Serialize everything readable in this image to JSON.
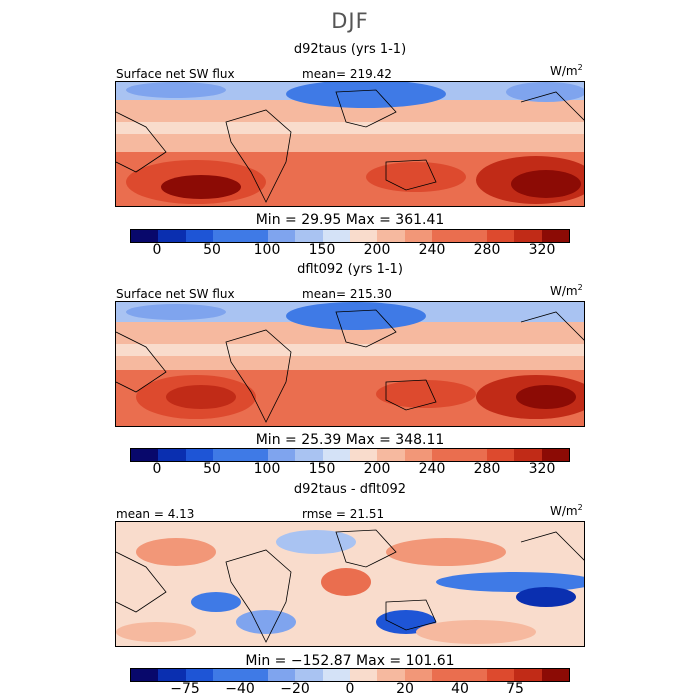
{
  "title": "DJF",
  "panels": [
    {
      "subtitle": "d92taus (yrs 1-1)",
      "left_label": "Surface net SW flux",
      "mid_label": "mean= 219.42",
      "units": "W/m",
      "units_exp": "2",
      "stats": "Min =  29.95 Max = 361.41"
    },
    {
      "subtitle": "dflt092 (yrs 1-1)",
      "left_label": "Surface net SW flux",
      "mid_label": "mean= 215.30",
      "units": "W/m",
      "units_exp": "2",
      "stats": "Min =  25.39 Max = 348.11"
    },
    {
      "subtitle": "d92taus - dflt092",
      "left_label": "mean =   4.13",
      "mid_label": "rmse =  21.51",
      "units": "W/m",
      "units_exp": "2",
      "stats": "Min = −152.87 Max = 101.61"
    }
  ],
  "colorbar_abs": {
    "ticks": [
      "0",
      "50",
      "100",
      "150",
      "200",
      "240",
      "280",
      "320"
    ]
  },
  "colorbar_diff": {
    "ticks": [
      "−75",
      "−40",
      "−20",
      "0",
      "20",
      "40",
      "75"
    ]
  },
  "colors": {
    "scale": [
      "#08086b",
      "#0a2fb0",
      "#1e55d6",
      "#3f7ae6",
      "#7fa4ee",
      "#a9c3f2",
      "#d4e2f7",
      "#f9dccc",
      "#f6b99f",
      "#f29778",
      "#ea6e4f",
      "#dd4a2e",
      "#c12b17",
      "#8c0b05"
    ]
  },
  "chart_data": [
    {
      "type": "heatmap",
      "title": "d92taus (yrs 1-1)",
      "variable": "Surface net SW flux",
      "units": "W/m2",
      "mean": 219.42,
      "min": 29.95,
      "max": 361.41,
      "colorbar_ticks": [
        0,
        50,
        100,
        150,
        200,
        240,
        280,
        320
      ]
    },
    {
      "type": "heatmap",
      "title": "dflt092 (yrs 1-1)",
      "variable": "Surface net SW flux",
      "units": "W/m2",
      "mean": 215.3,
      "min": 25.39,
      "max": 348.11,
      "colorbar_ticks": [
        0,
        50,
        100,
        150,
        200,
        240,
        280,
        320
      ]
    },
    {
      "type": "heatmap",
      "title": "d92taus - dflt092",
      "units": "W/m2",
      "mean": 4.13,
      "rmse": 21.51,
      "min": -152.87,
      "max": 101.61,
      "colorbar_ticks": [
        -75,
        -40,
        -20,
        0,
        20,
        40,
        75
      ]
    }
  ]
}
